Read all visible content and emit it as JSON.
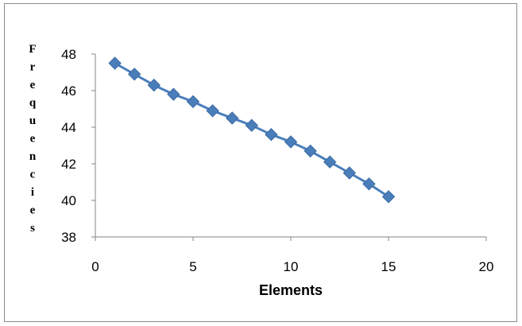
{
  "chart_data": {
    "type": "scatter",
    "title": "",
    "xlabel": "Elements",
    "ylabel": "Frequencies",
    "xlim": [
      0,
      20
    ],
    "ylim": [
      38,
      48
    ],
    "xticks": [
      0,
      5,
      10,
      15,
      20
    ],
    "yticks": [
      38,
      40,
      42,
      44,
      46,
      48
    ],
    "grid": false,
    "legend": "none",
    "marker": "diamond",
    "line": "straight",
    "color": "#4a7ebb",
    "series": [
      {
        "x": [
          1,
          2,
          3,
          4,
          5,
          6,
          7,
          8,
          9,
          10,
          11,
          12,
          13,
          14,
          15
        ],
        "values": [
          47.5,
          46.9,
          46.3,
          45.8,
          45.4,
          44.9,
          44.5,
          44.1,
          43.6,
          43.2,
          42.7,
          42.1,
          41.5,
          40.9,
          40.2
        ]
      }
    ]
  }
}
